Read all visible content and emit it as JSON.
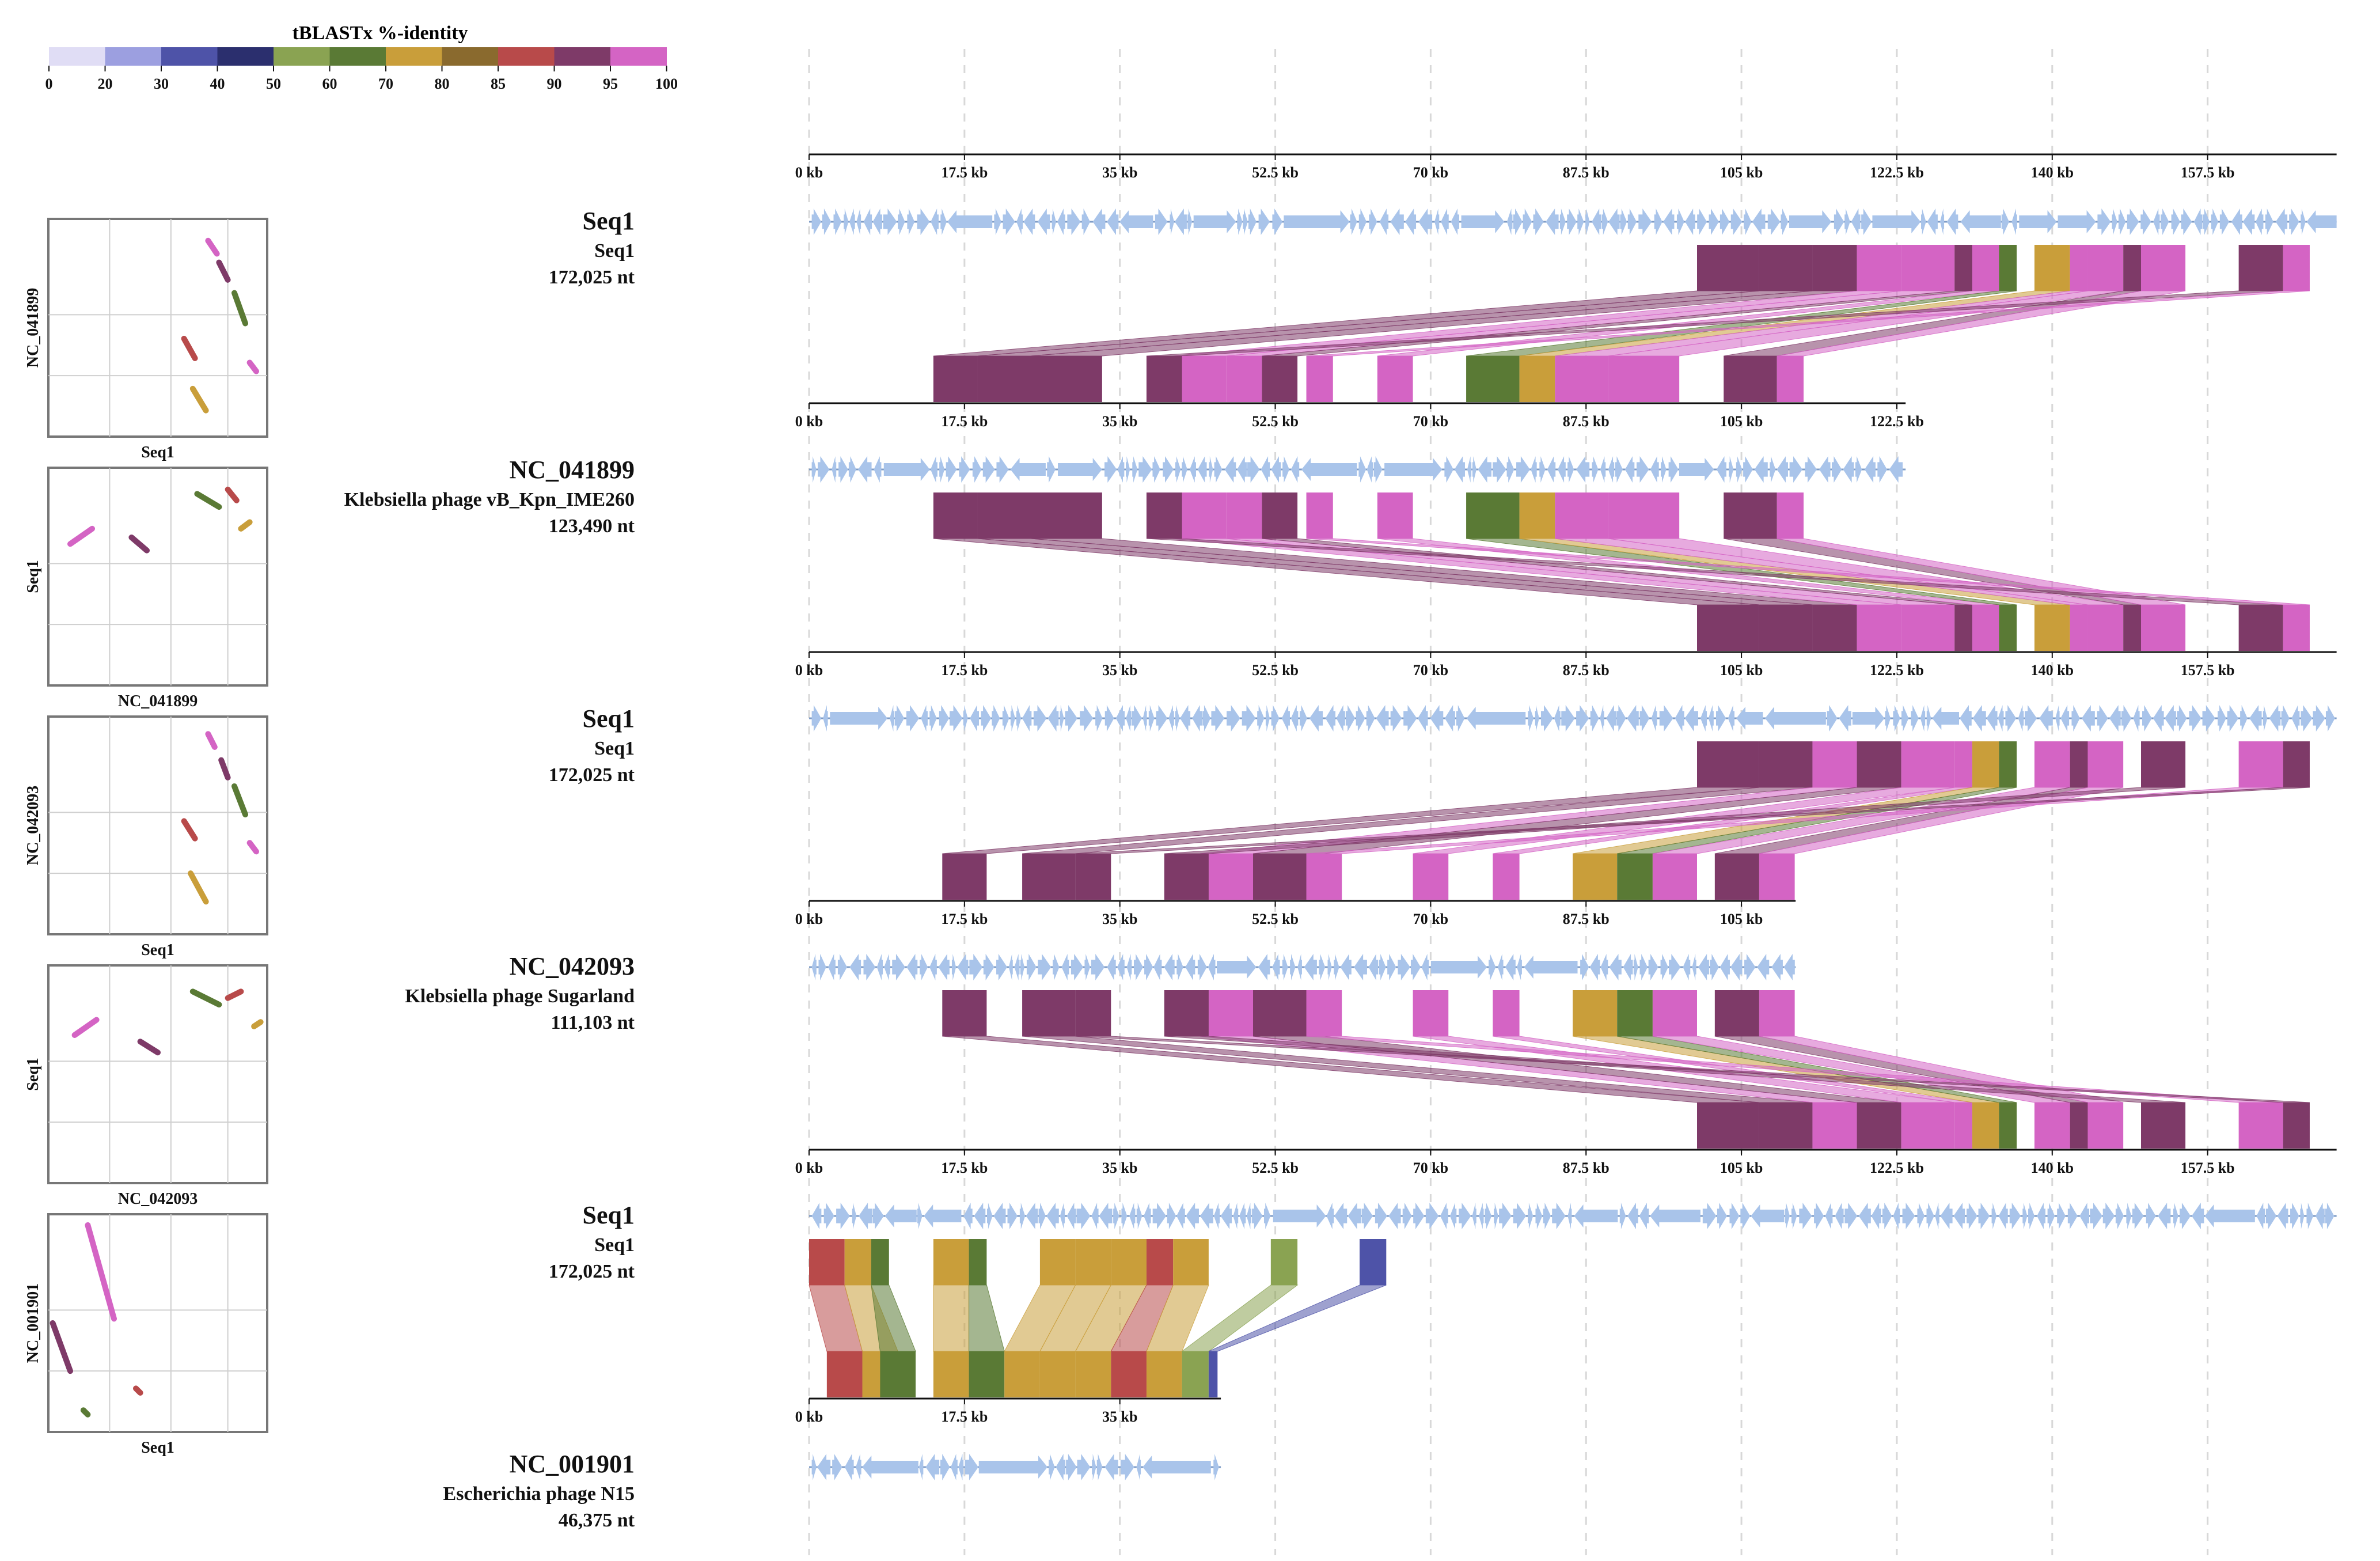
{
  "legend": {
    "title": "tBLASTx %-identity",
    "ticks": [
      "0",
      "20",
      "30",
      "40",
      "50",
      "60",
      "70",
      "80",
      "85",
      "90",
      "95",
      "100"
    ],
    "colors": [
      "#e0ddf5",
      "#9c9fe0",
      "#4e53a8",
      "#2b2f6e",
      "#8aa352",
      "#5a7a35",
      "#c99e3a",
      "#8a6a2e",
      "#b84a4a",
      "#7e3a68",
      "#d464c4"
    ]
  },
  "axis": {
    "tick_labels_full": [
      "0 kb",
      "17.5 kb",
      "35 kb",
      "52.5 kb",
      "70 kb",
      "87.5 kb",
      "105 kb",
      "122.5 kb",
      "140 kb",
      "157.5 kb"
    ],
    "tick_values_kb": [
      0,
      17.5,
      35,
      52.5,
      70,
      87.5,
      105,
      122.5,
      140,
      157.5
    ]
  },
  "gene_color": "#a9c4ea",
  "genomes": [
    {
      "id": "Seq1",
      "name": "Seq1",
      "length_label": "172,025 nt",
      "length_kb": 172.025
    },
    {
      "id": "NC_041899",
      "name": "Klebsiella phage vB_Kpn_IME260",
      "length_label": "123,490 nt",
      "length_kb": 123.49
    },
    {
      "id": "Seq1",
      "name": "Seq1",
      "length_label": "172,025 nt",
      "length_kb": 172.025
    },
    {
      "id": "NC_042093",
      "name": "Klebsiella phage Sugarland",
      "length_label": "111,103 nt",
      "length_kb": 111.103
    },
    {
      "id": "Seq1",
      "name": "Seq1",
      "length_label": "172,025 nt",
      "length_kb": 172.025
    },
    {
      "id": "NC_001901",
      "name": "Escherichia phage N15",
      "length_label": "46,375 nt",
      "length_kb": 46.375
    }
  ],
  "dotplots": [
    {
      "ylabel": "NC_041899",
      "xlabel": "Seq1"
    },
    {
      "ylabel": "Seq1",
      "xlabel": "NC_041899"
    },
    {
      "ylabel": "NC_042093",
      "xlabel": "Seq1"
    },
    {
      "ylabel": "Seq1",
      "xlabel": "NC_042093"
    },
    {
      "ylabel": "NC_001901",
      "xlabel": "Seq1"
    }
  ]
}
